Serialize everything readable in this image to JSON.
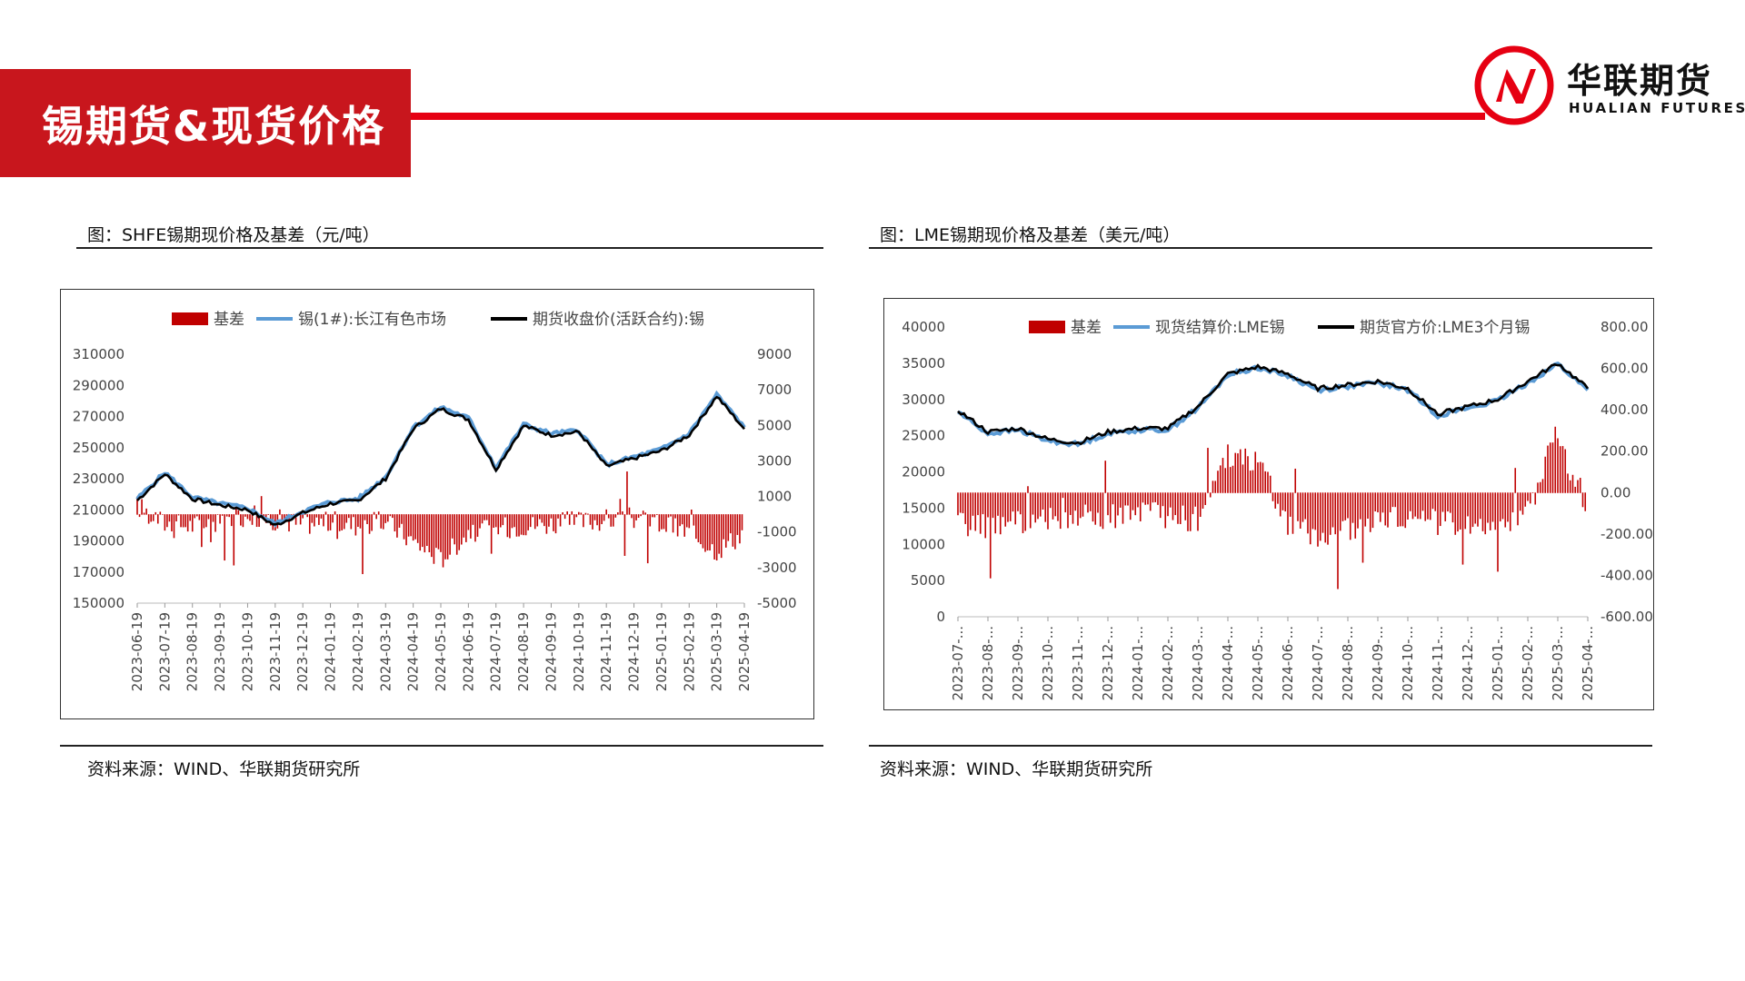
{
  "header": {
    "title": "锡期货&现货价格",
    "accent_color": "#c8161d",
    "rule_color": "#e60012"
  },
  "logo": {
    "name_cn": "华联期货",
    "name_en": "HUALIAN FUTURES",
    "icon": "hualian-logo-icon",
    "icon_color": "#e60012"
  },
  "left_panel": {
    "caption": "图：SHFE锡期现价格及基差（元/吨）",
    "source": "资料来源：WIND、华联期货研究所"
  },
  "right_panel": {
    "caption": "图：LME锡期现价格及基差（美元/吨）",
    "source": "资料来源：WIND、华联期货研究所"
  },
  "chart_data": [
    {
      "type": "line",
      "secondary_type": "bar",
      "legend_position": "top",
      "grid": false,
      "series": [
        {
          "name": "基差",
          "axis": "right",
          "kind": "bar",
          "color": "#c00000"
        },
        {
          "name": "锡(1#):长江有色市场",
          "axis": "left",
          "kind": "line",
          "color": "#5b9bd5"
        },
        {
          "name": "期货收盘价(活跃合约):锡",
          "axis": "left",
          "kind": "line",
          "color": "#000000"
        }
      ],
      "x": [
        "2023-06-19",
        "2023-07-19",
        "2023-08-19",
        "2023-09-19",
        "2023-10-19",
        "2023-11-19",
        "2023-12-19",
        "2024-01-19",
        "2024-02-19",
        "2024-03-19",
        "2024-04-19",
        "2024-05-19",
        "2024-06-19",
        "2024-07-19",
        "2024-08-19",
        "2024-09-19",
        "2024-10-19",
        "2024-11-19",
        "2024-12-19",
        "2025-01-19",
        "2025-02-19",
        "2025-03-19",
        "2025-04-19"
      ],
      "x_tick_labels": [
        "2023-06-19",
        "2023-07-19",
        "2023-08-19",
        "2023-09-19",
        "2023-10-19",
        "2023-11-19",
        "2023-12-19",
        "2024-01-19",
        "2024-02-19",
        "2024-03-19",
        "2024-04-19",
        "2024-05-19",
        "2024-06-19",
        "2024-07-19",
        "2024-08-19",
        "2024-09-19",
        "2024-10-19",
        "2024-11-19",
        "2024-12-19",
        "2025-01-19",
        "2025-02-19",
        "2025-03-19",
        "2025-04-19"
      ],
      "futures_price": [
        216000,
        233000,
        217000,
        213000,
        210000,
        200000,
        208000,
        214000,
        216000,
        230000,
        262000,
        275000,
        268000,
        236000,
        264000,
        258000,
        260000,
        238000,
        243000,
        248000,
        258000,
        283000,
        262000
      ],
      "spot_price": [
        217000,
        234000,
        218000,
        214000,
        211000,
        201000,
        209000,
        215000,
        217000,
        231000,
        263000,
        276000,
        269000,
        237000,
        265000,
        259000,
        261000,
        239000,
        244000,
        249000,
        259000,
        284000,
        263000
      ],
      "basis_base": [
        500,
        -500,
        -600,
        -400,
        0,
        -300,
        -500,
        -400,
        -600,
        -400,
        -1500,
        -2500,
        -1000,
        -800,
        -600,
        -500,
        -400,
        -300,
        -200,
        -500,
        -1000,
        -2000,
        -1000
      ],
      "y_left": {
        "min": 150000,
        "max": 310000,
        "ticks": [
          "310000",
          "290000",
          "270000",
          "250000",
          "230000",
          "210000",
          "190000",
          "170000",
          "150000"
        ]
      },
      "y_right": {
        "min": -5000,
        "max": 9000,
        "ticks": [
          "9000",
          "7000",
          "5000",
          "3000",
          "1000",
          "-1000",
          "-3000",
          "-5000"
        ]
      }
    },
    {
      "type": "line",
      "secondary_type": "bar",
      "legend_position": "top",
      "grid": false,
      "series": [
        {
          "name": "基差",
          "axis": "right",
          "kind": "bar",
          "color": "#c00000"
        },
        {
          "name": "现货结算价:LME锡",
          "axis": "left",
          "kind": "line",
          "color": "#5b9bd5"
        },
        {
          "name": "期货官方价:LME3个月锡",
          "axis": "left",
          "kind": "line",
          "color": "#000000"
        }
      ],
      "x": [
        "2023-07",
        "2023-08",
        "2023-09",
        "2023-10",
        "2023-11",
        "2023-12",
        "2024-01",
        "2024-02",
        "2024-03",
        "2024-04",
        "2024-05",
        "2024-06",
        "2024-07",
        "2024-08",
        "2024-09",
        "2024-10",
        "2024-11",
        "2024-12",
        "2025-01",
        "2025-02",
        "2025-03",
        "2025-04"
      ],
      "x_tick_labels": [
        "2023-07-...",
        "2023-08-...",
        "2023-09-...",
        "2023-10-...",
        "2023-11-...",
        "2023-12-...",
        "2024-01-...",
        "2024-02-...",
        "2024-03-...",
        "2024-04-...",
        "2024-05-...",
        "2024-06-...",
        "2024-07-...",
        "2024-08-...",
        "2024-09-...",
        "2024-10-...",
        "2024-11-...",
        "2024-12-...",
        "2025-01-...",
        "2025-02-...",
        "2025-03-...",
        "2025-04-..."
      ],
      "futures_price": [
        28500,
        25500,
        26000,
        24500,
        24000,
        25500,
        26000,
        26000,
        29000,
        33500,
        34500,
        33500,
        31500,
        32000,
        32500,
        31500,
        28000,
        29000,
        30000,
        32500,
        35000,
        31500
      ],
      "spot_price": [
        28300,
        25300,
        25800,
        24300,
        23800,
        25300,
        25800,
        25800,
        28800,
        33400,
        34400,
        33300,
        31300,
        31800,
        32300,
        31300,
        27800,
        28800,
        29800,
        32300,
        34900,
        31300
      ],
      "basis_base": [
        -150,
        -160,
        -140,
        -130,
        -120,
        -110,
        -100,
        -110,
        -130,
        180,
        150,
        -150,
        -200,
        -180,
        -120,
        -130,
        -140,
        -150,
        -140,
        -100,
        300,
        -150
      ],
      "y_left": {
        "min": 0,
        "max": 40000,
        "ticks": [
          "40000",
          "35000",
          "30000",
          "25000",
          "20000",
          "15000",
          "10000",
          "5000",
          "0"
        ]
      },
      "y_right": {
        "min": -600,
        "max": 800,
        "ticks": [
          "800.00",
          "600.00",
          "400.00",
          "200.00",
          "0.00",
          "-200.00",
          "-400.00",
          "-600.00"
        ]
      }
    }
  ]
}
